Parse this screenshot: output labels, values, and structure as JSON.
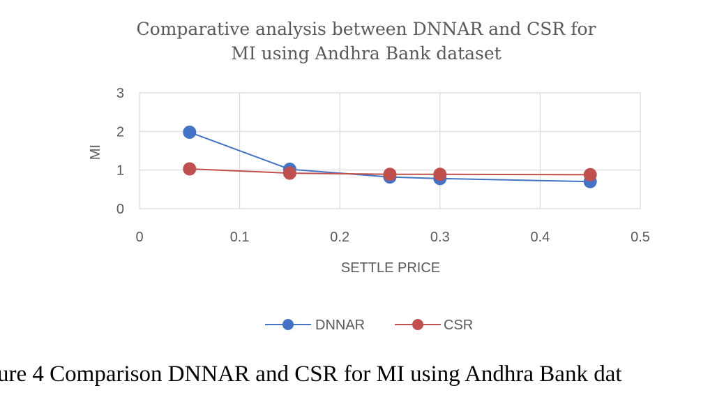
{
  "chart_data": {
    "type": "line",
    "title_lines": [
      "Comparative  analysis between  DNNAR and  CSR for",
      "MI using Andhra  Bank dataset"
    ],
    "xlabel": "SETTLE PRICE",
    "ylabel": "MI",
    "xlim": [
      0,
      0.5
    ],
    "ylim": [
      0,
      3
    ],
    "x_ticks": [
      0,
      0.1,
      0.2,
      0.3,
      0.4,
      0.5
    ],
    "y_ticks": [
      0,
      1,
      2,
      3
    ],
    "x_tick_labels": [
      "0",
      "0.1",
      "0.2",
      "0.3",
      "0.4",
      "0.5"
    ],
    "y_tick_labels": [
      "0",
      "1",
      "2",
      "3"
    ],
    "grid": true,
    "legend_position": "bottom",
    "series": [
      {
        "name": "DNNAR",
        "color": "#4472c4",
        "x": [
          0.05,
          0.15,
          0.25,
          0.3,
          0.45
        ],
        "y": [
          1.98,
          1.02,
          0.82,
          0.78,
          0.7
        ]
      },
      {
        "name": "CSR",
        "color": "#c0504d",
        "x": [
          0.05,
          0.15,
          0.25,
          0.3,
          0.45
        ],
        "y": [
          1.03,
          0.92,
          0.89,
          0.89,
          0.88
        ]
      }
    ]
  },
  "caption": "ure 4 Comparison DNNAR and CSR for MI using Andhra Bank dat"
}
